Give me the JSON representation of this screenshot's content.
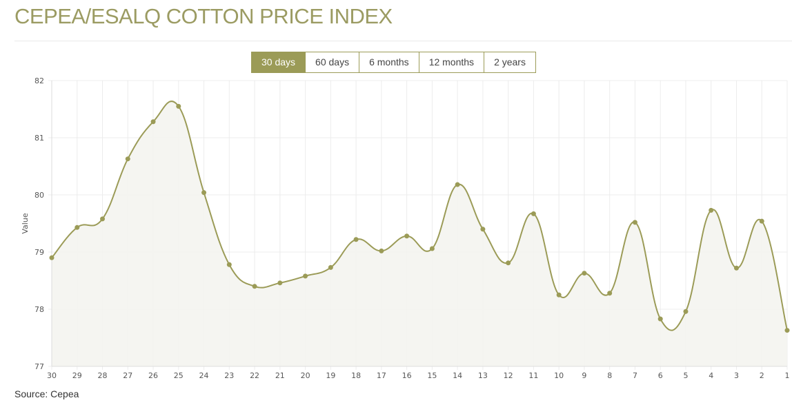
{
  "title": "CEPEA/ESALQ COTTON PRICE INDEX",
  "tabs": [
    {
      "label": "30 days",
      "active": true
    },
    {
      "label": "60 days",
      "active": false
    },
    {
      "label": "6 months",
      "active": false
    },
    {
      "label": "12 months",
      "active": false
    },
    {
      "label": "2 years",
      "active": false
    }
  ],
  "source": "Source: Cepea",
  "colors": {
    "accent": "#9b9b57",
    "fill": "#f4f4ef"
  },
  "chart_data": {
    "type": "area",
    "title": "",
    "xlabel": "",
    "ylabel": "Value",
    "ylim": [
      77,
      82
    ],
    "yticks": [
      "77",
      "78",
      "79",
      "80",
      "81",
      "82"
    ],
    "grid": true,
    "smooth": true,
    "categories": [
      "30",
      "29",
      "28",
      "27",
      "26",
      "25",
      "24",
      "23",
      "22",
      "21",
      "20",
      "19",
      "18",
      "17",
      "16",
      "15",
      "14",
      "13",
      "12",
      "11",
      "10",
      "9",
      "8",
      "7",
      "6",
      "5",
      "4",
      "3",
      "2",
      "1"
    ],
    "values": [
      78.9,
      79.43,
      79.58,
      80.63,
      81.28,
      81.55,
      80.04,
      78.78,
      78.4,
      78.46,
      78.58,
      78.73,
      79.22,
      79.02,
      79.28,
      79.06,
      80.18,
      79.4,
      78.81,
      79.67,
      78.25,
      78.63,
      78.28,
      79.52,
      77.83,
      77.96,
      79.73,
      78.72,
      79.54,
      77.63
    ]
  }
}
